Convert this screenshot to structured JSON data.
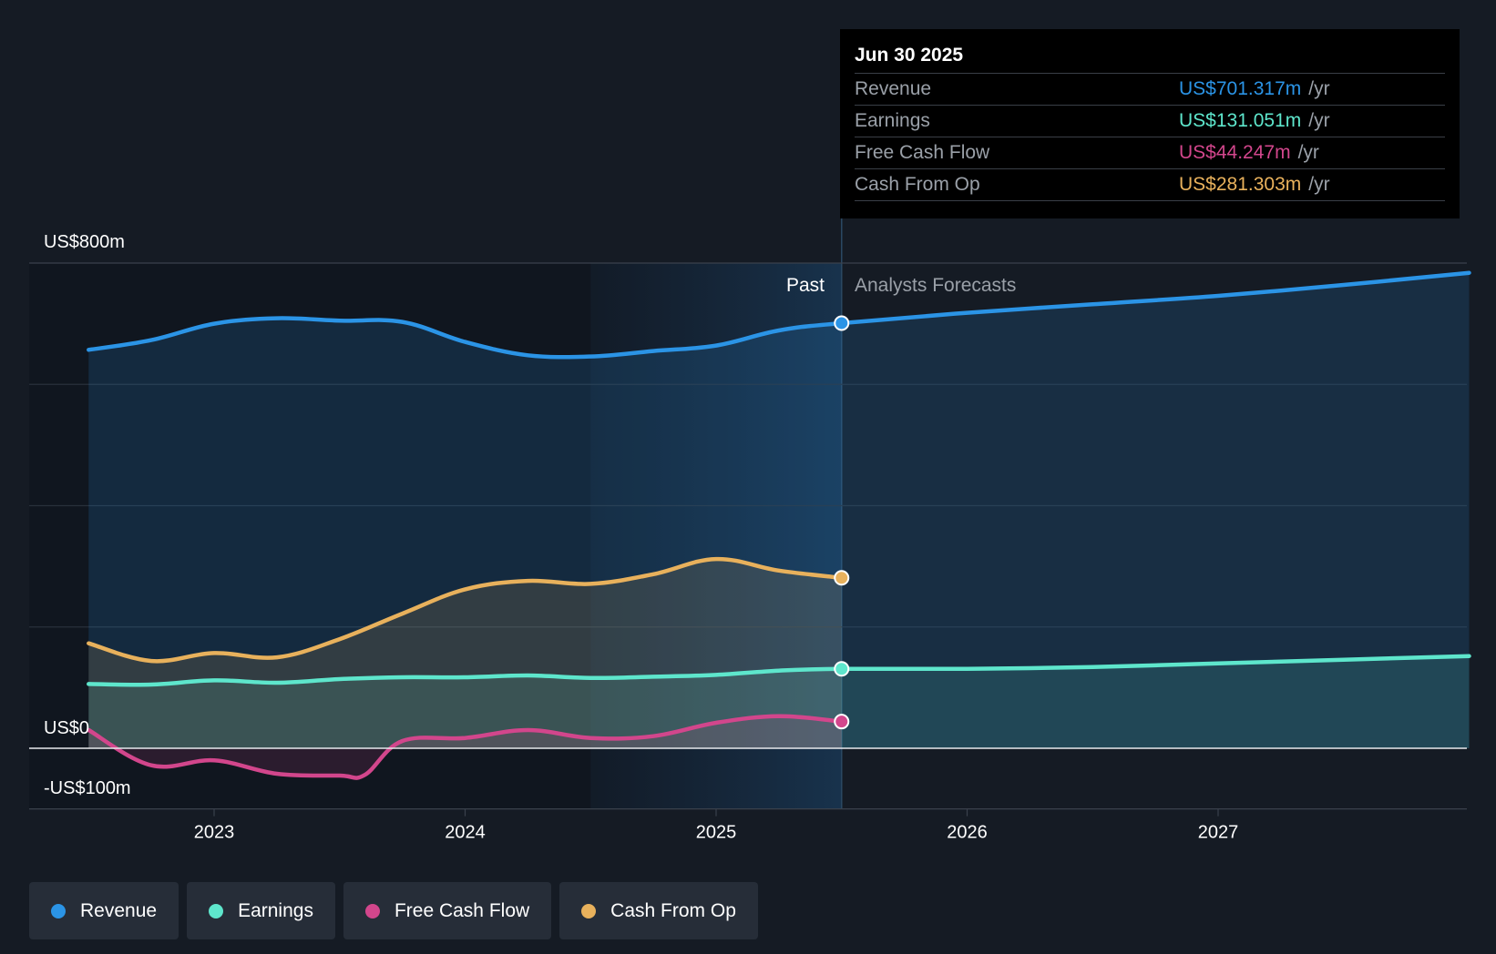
{
  "chart_data": {
    "type": "line",
    "title": "",
    "y_axis": {
      "top_label": "US$800m",
      "zero_label": "US$0",
      "bottom_label": "-US$100m",
      "ylim": [
        -100,
        800
      ],
      "unit": "US$m"
    },
    "x_ticks": [
      "2023",
      "2024",
      "2025",
      "2026",
      "2027"
    ],
    "regions": {
      "past_label": "Past",
      "forecast_label": "Analysts Forecasts"
    },
    "past_end": 2025.5,
    "past_highlight_start": 2024.5,
    "series": [
      {
        "name": "Revenue",
        "color": "#2b94e6",
        "x": [
          2022.5,
          2022.75,
          2023.0,
          2023.25,
          2023.5,
          2023.75,
          2024.0,
          2024.25,
          2024.5,
          2024.75,
          2025.0,
          2025.25,
          2025.5,
          2026.0,
          2026.5,
          2027.0,
          2027.5,
          2028.0
        ],
        "values": [
          657,
          673,
          700,
          709,
          705,
          703,
          670,
          648,
          646,
          655,
          664,
          689,
          701,
          718,
          732,
          746,
          764,
          784
        ]
      },
      {
        "name": "Earnings",
        "color": "#5ee6cc",
        "x": [
          2022.5,
          2022.75,
          2023.0,
          2023.25,
          2023.5,
          2023.75,
          2024.0,
          2024.25,
          2024.5,
          2024.75,
          2025.0,
          2025.25,
          2025.5,
          2026.0,
          2026.5,
          2027.0,
          2027.5,
          2028.0
        ],
        "values": [
          106,
          105,
          112,
          108,
          114,
          117,
          117,
          120,
          116,
          118,
          121,
          128,
          131,
          131,
          134,
          140,
          146,
          152
        ]
      },
      {
        "name": "Free Cash Flow",
        "color": "#d2468c",
        "x": [
          2022.5,
          2022.75,
          2023.0,
          2023.25,
          2023.5,
          2023.6,
          2023.75,
          2024.0,
          2024.25,
          2024.5,
          2024.75,
          2025.0,
          2025.25,
          2025.5
        ],
        "values": [
          30,
          -28,
          -20,
          -42,
          -45,
          -44,
          12,
          17,
          30,
          17,
          20,
          42,
          53,
          44
        ]
      },
      {
        "name": "Cash From Op",
        "color": "#e8b15c",
        "x": [
          2022.5,
          2022.75,
          2023.0,
          2023.25,
          2023.5,
          2023.75,
          2024.0,
          2024.25,
          2024.5,
          2024.75,
          2025.0,
          2025.25,
          2025.5
        ],
        "values": [
          173,
          144,
          157,
          150,
          180,
          222,
          262,
          276,
          271,
          287,
          312,
          293,
          281
        ]
      }
    ]
  },
  "tooltip": {
    "date": "Jun 30 2025",
    "rows": [
      {
        "label": "Revenue",
        "value": "US$701.317m",
        "unit": "/yr",
        "color": "#2b94e6"
      },
      {
        "label": "Earnings",
        "value": "US$131.051m",
        "unit": "/yr",
        "color": "#5ee6cc"
      },
      {
        "label": "Free Cash Flow",
        "value": "US$44.247m",
        "unit": "/yr",
        "color": "#d2468c"
      },
      {
        "label": "Cash From Op",
        "value": "US$281.303m",
        "unit": "/yr",
        "color": "#e8b15c"
      }
    ]
  },
  "legend": [
    {
      "label": "Revenue",
      "color": "#2b94e6"
    },
    {
      "label": "Earnings",
      "color": "#5ee6cc"
    },
    {
      "label": "Free Cash Flow",
      "color": "#d2468c"
    },
    {
      "label": "Cash From Op",
      "color": "#e8b15c"
    }
  ]
}
